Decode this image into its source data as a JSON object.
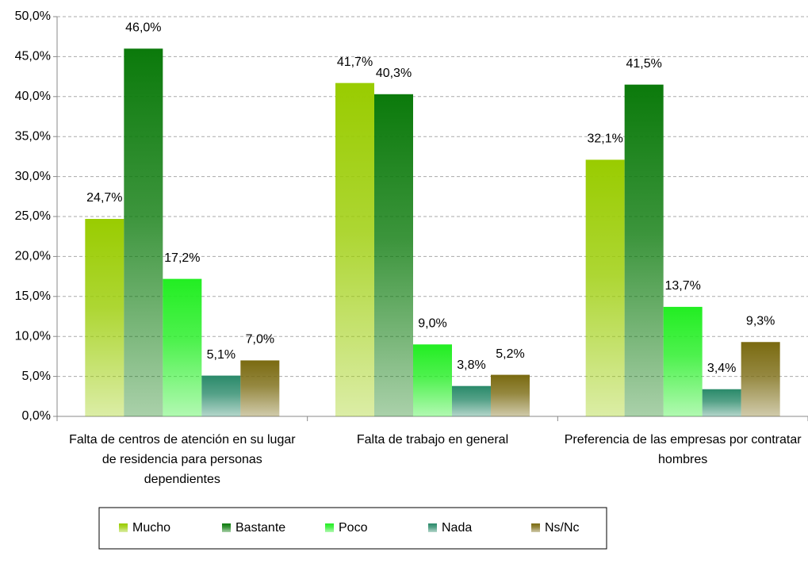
{
  "chart_data": {
    "type": "bar",
    "categories": [
      "Falta de centros de atención en su lugar de residencia para personas dependientes",
      "Falta de trabajo en general",
      "Preferencia de las empresas por contratar hombres"
    ],
    "series": [
      {
        "name": "Mucho",
        "color": "#99cc00",
        "values": [
          24.7,
          41.7,
          32.1
        ],
        "value_labels": [
          "24,7%",
          "41,7%",
          "32,1%"
        ]
      },
      {
        "name": "Bastante",
        "color": "#0b7a0b",
        "values": [
          46.0,
          40.3,
          41.5
        ],
        "value_labels": [
          "46,0%",
          "40,3%",
          "41,5%"
        ]
      },
      {
        "name": "Poco",
        "color": "#22ee22",
        "values": [
          17.2,
          9.0,
          13.7
        ],
        "value_labels": [
          "17,2%",
          "9,0%",
          "13,7%"
        ]
      },
      {
        "name": "Nada",
        "color": "#2a8a6a",
        "values": [
          5.1,
          3.8,
          3.4
        ],
        "value_labels": [
          "5,1%",
          "3,8%",
          "3,4%"
        ]
      },
      {
        "name": "Ns/Nc",
        "color": "#7a6a10",
        "values": [
          7.0,
          5.2,
          9.3
        ],
        "value_labels": [
          "7,0%",
          "5,2%",
          "9,3%"
        ]
      }
    ],
    "ylim": [
      0,
      50
    ],
    "yticks": [
      {
        "value": 0,
        "label": "0,0%"
      },
      {
        "value": 5,
        "label": "5,0%"
      },
      {
        "value": 10,
        "label": "10,0%"
      },
      {
        "value": 15,
        "label": "15,0%"
      },
      {
        "value": 20,
        "label": "20,0%"
      },
      {
        "value": 25,
        "label": "25,0%"
      },
      {
        "value": 30,
        "label": "30,0%"
      },
      {
        "value": 35,
        "label": "35,0%"
      },
      {
        "value": 40,
        "label": "40,0%"
      },
      {
        "value": 45,
        "label": "45,0%"
      },
      {
        "value": 50,
        "label": "50,0%"
      }
    ],
    "grid": true,
    "legend": "bottom"
  }
}
